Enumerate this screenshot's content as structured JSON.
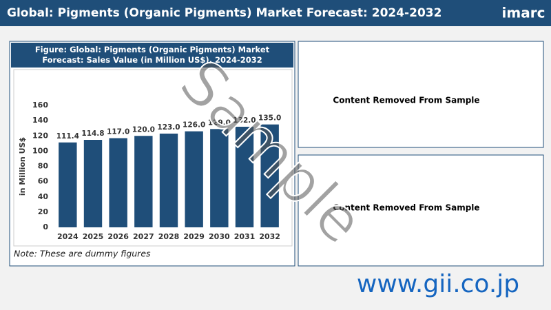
{
  "header": {
    "title": "Global: Pigments (Organic Pigments) Market Forecast: 2024-2032",
    "logo": "imarc"
  },
  "chart_data": {
    "type": "bar",
    "title": "Figure: Global: Pigments (Organic Pigments) Market Forecast: Sales Value (in Million US$), 2024-2032",
    "y_label": "in Million US$",
    "categories": [
      "2024",
      "2025",
      "2026",
      "2027",
      "2028",
      "2029",
      "2030",
      "2031",
      "2032"
    ],
    "values": [
      111.4,
      114.8,
      117.0,
      120.0,
      123.0,
      126.0,
      129.0,
      132.0,
      135.0
    ],
    "value_labels": [
      "111.4",
      "114.8",
      "117.0",
      "120.0",
      "123.0",
      "126.0",
      "129.0",
      "132.0",
      "135.0"
    ],
    "color": "#1f4e79",
    "ylim": [
      0,
      160
    ],
    "yticks": [
      0,
      20,
      40,
      60,
      80,
      100,
      120,
      140,
      160
    ],
    "grid": false,
    "note": "Note: These are dummy figures"
  },
  "panels": [
    "Content Removed From Sample",
    "Content Removed From Sample"
  ],
  "watermark": "Sample",
  "footer": "www.gii.co.jp"
}
